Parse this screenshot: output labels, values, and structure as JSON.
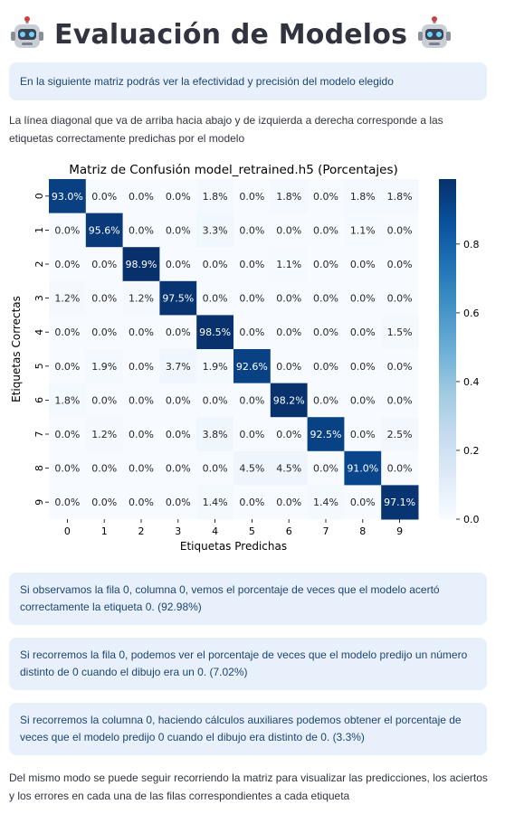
{
  "page": {
    "title": "Evaluación de Modelos",
    "intro_info": "En la siguiente matriz podrás ver la efectividad y precisión del modelo elegido",
    "diagonal_text": "La línea diagonal que va de arriba hacia abajo y de izquierda a derecha corresponde a las etiquetas correctamente predichas por el modelo",
    "info_row0_col0": "Si observamos la fila 0, columna 0, vemos el porcentaje de veces que el modelo acertó correctamente la etiqueta 0. (92.98%)",
    "info_row0": "Si recorremos la fila 0, podemos ver el porcentaje de veces que el modelo predijo un número distinto de 0 cuando el dibujo era un 0. (7.02%)",
    "info_col0": "Si recorremos la columna 0, haciendo cálculos auxiliares podemos obtener el porcentaje de veces que el modelo predijo 0 cuando el dibujo era distinto de 0. (3.3%)",
    "closing_text": "Del mismo modo se puede seguir recorriendo la matriz para visualizar las predicciones, los aciertos y los errores en cada una de las filas correspondientes a cada etiqueta"
  },
  "icons": {
    "title_left": "robot-icon",
    "title_right": "robot-icon"
  },
  "chart_data": {
    "type": "heatmap",
    "title": "Matriz de Confusión model_retrained.h5 (Porcentajes)",
    "xlabel": "Etiquetas Predichas",
    "ylabel": "Etiquetas Correctas",
    "x_categories": [
      "0",
      "1",
      "2",
      "3",
      "4",
      "5",
      "6",
      "7",
      "8",
      "9"
    ],
    "y_categories": [
      "0",
      "1",
      "2",
      "3",
      "4",
      "5",
      "6",
      "7",
      "8",
      "9"
    ],
    "values": [
      [
        0.93,
        0.0,
        0.0,
        0.0,
        0.018,
        0.0,
        0.018,
        0.0,
        0.018,
        0.018
      ],
      [
        0.0,
        0.956,
        0.0,
        0.0,
        0.033,
        0.0,
        0.0,
        0.0,
        0.011,
        0.0
      ],
      [
        0.0,
        0.0,
        0.989,
        0.0,
        0.0,
        0.0,
        0.011,
        0.0,
        0.0,
        0.0
      ],
      [
        0.012,
        0.0,
        0.012,
        0.975,
        0.0,
        0.0,
        0.0,
        0.0,
        0.0,
        0.0
      ],
      [
        0.0,
        0.0,
        0.0,
        0.0,
        0.985,
        0.0,
        0.0,
        0.0,
        0.0,
        0.015
      ],
      [
        0.0,
        0.019,
        0.0,
        0.037,
        0.019,
        0.926,
        0.0,
        0.0,
        0.0,
        0.0
      ],
      [
        0.018,
        0.0,
        0.0,
        0.0,
        0.0,
        0.0,
        0.982,
        0.0,
        0.0,
        0.0
      ],
      [
        0.0,
        0.012,
        0.0,
        0.0,
        0.038,
        0.0,
        0.0,
        0.925,
        0.0,
        0.025
      ],
      [
        0.0,
        0.0,
        0.0,
        0.0,
        0.0,
        0.045,
        0.045,
        0.0,
        0.91,
        0.0
      ],
      [
        0.0,
        0.0,
        0.0,
        0.0,
        0.014,
        0.0,
        0.0,
        0.014,
        0.0,
        0.971
      ]
    ],
    "labels": [
      [
        "93.0%",
        "0.0%",
        "0.0%",
        "0.0%",
        "1.8%",
        "0.0%",
        "1.8%",
        "0.0%",
        "1.8%",
        "1.8%"
      ],
      [
        "0.0%",
        "95.6%",
        "0.0%",
        "0.0%",
        "3.3%",
        "0.0%",
        "0.0%",
        "0.0%",
        "1.1%",
        "0.0%"
      ],
      [
        "0.0%",
        "0.0%",
        "98.9%",
        "0.0%",
        "0.0%",
        "0.0%",
        "1.1%",
        "0.0%",
        "0.0%",
        "0.0%"
      ],
      [
        "1.2%",
        "0.0%",
        "1.2%",
        "97.5%",
        "0.0%",
        "0.0%",
        "0.0%",
        "0.0%",
        "0.0%",
        "0.0%"
      ],
      [
        "0.0%",
        "0.0%",
        "0.0%",
        "0.0%",
        "98.5%",
        "0.0%",
        "0.0%",
        "0.0%",
        "0.0%",
        "1.5%"
      ],
      [
        "0.0%",
        "1.9%",
        "0.0%",
        "3.7%",
        "1.9%",
        "92.6%",
        "0.0%",
        "0.0%",
        "0.0%",
        "0.0%"
      ],
      [
        "1.8%",
        "0.0%",
        "0.0%",
        "0.0%",
        "0.0%",
        "0.0%",
        "98.2%",
        "0.0%",
        "0.0%",
        "0.0%"
      ],
      [
        "0.0%",
        "1.2%",
        "0.0%",
        "0.0%",
        "3.8%",
        "0.0%",
        "0.0%",
        "92.5%",
        "0.0%",
        "2.5%"
      ],
      [
        "0.0%",
        "0.0%",
        "0.0%",
        "0.0%",
        "0.0%",
        "4.5%",
        "4.5%",
        "0.0%",
        "91.0%",
        "0.0%"
      ],
      [
        "0.0%",
        "0.0%",
        "0.0%",
        "0.0%",
        "1.4%",
        "0.0%",
        "0.0%",
        "1.4%",
        "0.0%",
        "97.1%"
      ]
    ],
    "colorbar_ticks": [
      "0.0",
      "0.2",
      "0.4",
      "0.6",
      "0.8"
    ],
    "colorbar_range": [
      0.0,
      0.989
    ],
    "colormap": "Blues",
    "colors": {
      "low": "#f7fbff",
      "high": "#08306b",
      "annot_dark": "#262626",
      "annot_light": "#ffffff"
    }
  }
}
